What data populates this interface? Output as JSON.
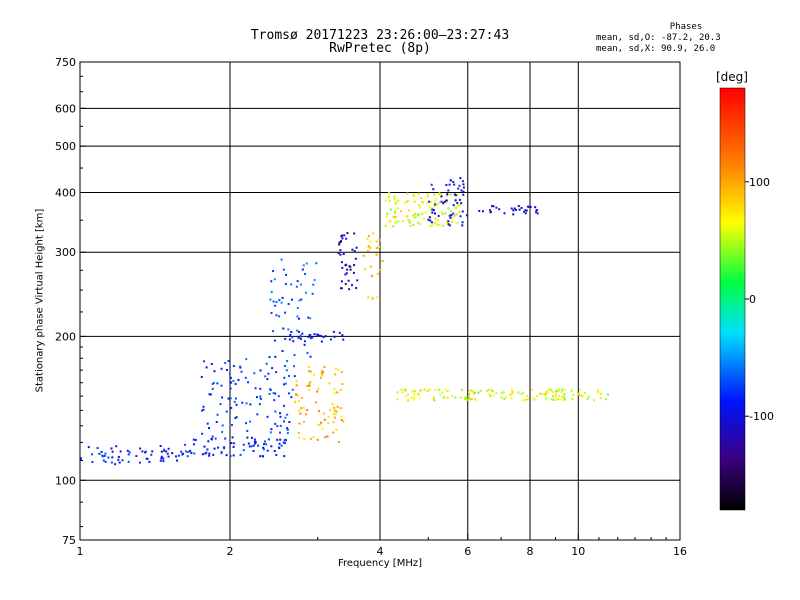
{
  "header": {
    "title_line1": "Tromsø 20171223 23:26:00–23:27:43",
    "title_line2": "RwPretec (8p)"
  },
  "stats": {
    "heading": "Phases",
    "line_o": "mean, sd,O: -87.2, 20.3",
    "line_x": "mean, sd,X:  90.9, 26.0"
  },
  "colorbar": {
    "unit": "[deg]",
    "ticks": [
      100,
      0,
      -100
    ],
    "range": [
      -180,
      180
    ]
  },
  "chart_data": {
    "type": "scatter",
    "title": "Tromsø 20171223 23:26:00–23:27:43",
    "subtitle": "RwPretec (8p)",
    "xlabel": "Frequency [MHz]",
    "ylabel": "Stationary phase Virtual Height [km]",
    "x_scale": "log",
    "y_scale": "log",
    "xlim": [
      1,
      16
    ],
    "ylim": [
      75,
      750
    ],
    "x_ticks": [
      1,
      2,
      4,
      6,
      8,
      10,
      16
    ],
    "y_ticks": [
      75,
      100,
      200,
      300,
      400,
      500,
      600,
      750
    ],
    "x_gridlines": [
      2,
      4,
      6,
      8,
      10
    ],
    "y_gridlines": [
      100,
      200,
      300,
      400,
      500,
      600
    ],
    "grid": true,
    "color_variable": "phase",
    "clusters": [
      {
        "f_min": 1.0,
        "f_max": 1.6,
        "h_min": 108,
        "h_max": 118,
        "phase": -110,
        "n": 60
      },
      {
        "f_min": 1.6,
        "f_max": 2.6,
        "h_min": 112,
        "h_max": 124,
        "phase": -105,
        "n": 80
      },
      {
        "f_min": 1.75,
        "f_max": 2.7,
        "h_min": 125,
        "h_max": 180,
        "phase": -95,
        "n": 110
      },
      {
        "f_min": 2.4,
        "f_max": 3.0,
        "h_min": 180,
        "h_max": 290,
        "phase": -85,
        "n": 60
      },
      {
        "f_min": 2.6,
        "f_max": 3.4,
        "h_min": 195,
        "h_max": 205,
        "phase": -120,
        "n": 25
      },
      {
        "f_min": 2.7,
        "f_max": 3.4,
        "h_min": 120,
        "h_max": 175,
        "phase": 95,
        "n": 80
      },
      {
        "f_min": 3.3,
        "f_max": 3.6,
        "h_min": 250,
        "h_max": 330,
        "phase": -140,
        "n": 40
      },
      {
        "f_min": 3.7,
        "f_max": 4.05,
        "h_min": 240,
        "h_max": 330,
        "phase": 90,
        "n": 25
      },
      {
        "f_min": 4.1,
        "f_max": 5.8,
        "h_min": 340,
        "h_max": 400,
        "phase": 65,
        "n": 120
      },
      {
        "f_min": 5.0,
        "f_max": 6.0,
        "h_min": 340,
        "h_max": 430,
        "phase": -120,
        "n": 55
      },
      {
        "f_min": 4.3,
        "f_max": 11.5,
        "h_min": 147,
        "h_max": 155,
        "phase": 60,
        "n": 140
      },
      {
        "f_min": 6.2,
        "f_max": 8.3,
        "h_min": 360,
        "h_max": 375,
        "phase": -130,
        "n": 30
      }
    ]
  }
}
